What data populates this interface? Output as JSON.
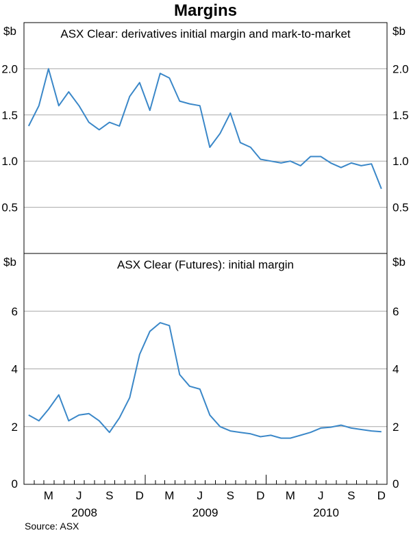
{
  "title": "Margins",
  "source": "Source: ASX",
  "colors": {
    "line": "#3a87c8",
    "grid": "#a8a8a8",
    "frame": "#000000"
  },
  "chart_data": [
    {
      "type": "line",
      "title": "ASX Clear: derivatives initial margin and mark-to-market",
      "unit_left": "$b",
      "unit_right": "$b",
      "ylim": [
        0,
        2.5
      ],
      "yticks": [
        {
          "value": 0.5,
          "label": "0.5"
        },
        {
          "value": 1.0,
          "label": "1.0"
        },
        {
          "value": 1.5,
          "label": "1.5"
        },
        {
          "value": 2.0,
          "label": "2.0"
        }
      ],
      "grid": true,
      "x": [
        "2008-01",
        "2008-02",
        "2008-03",
        "2008-04",
        "2008-05",
        "2008-06",
        "2008-07",
        "2008-08",
        "2008-09",
        "2008-10",
        "2008-11",
        "2008-12",
        "2009-01",
        "2009-02",
        "2009-03",
        "2009-04",
        "2009-05",
        "2009-06",
        "2009-07",
        "2009-08",
        "2009-09",
        "2009-10",
        "2009-11",
        "2009-12",
        "2010-01",
        "2010-02",
        "2010-03",
        "2010-04",
        "2010-05",
        "2010-06",
        "2010-07",
        "2010-08",
        "2010-09",
        "2010-10",
        "2010-11",
        "2010-12"
      ],
      "values": [
        1.38,
        1.6,
        2.0,
        1.6,
        1.75,
        1.6,
        1.42,
        1.34,
        1.42,
        1.38,
        1.7,
        1.85,
        1.55,
        1.95,
        1.9,
        1.65,
        1.62,
        1.6,
        1.15,
        1.3,
        1.52,
        1.2,
        1.15,
        1.02,
        1.0,
        0.98,
        1.0,
        0.95,
        1.05,
        1.05,
        0.98,
        0.93,
        0.98,
        0.95,
        0.97,
        0.7
      ]
    },
    {
      "type": "line",
      "title": "ASX Clear (Futures): initial margin",
      "unit_left": "$b",
      "unit_right": "$b",
      "ylim": [
        0,
        8
      ],
      "yticks": [
        {
          "value": 0,
          "label": "0"
        },
        {
          "value": 2,
          "label": "2"
        },
        {
          "value": 4,
          "label": "4"
        },
        {
          "value": 6,
          "label": "6"
        }
      ],
      "grid": true,
      "x": [
        "2008-01",
        "2008-02",
        "2008-03",
        "2008-04",
        "2008-05",
        "2008-06",
        "2008-07",
        "2008-08",
        "2008-09",
        "2008-10",
        "2008-11",
        "2008-12",
        "2009-01",
        "2009-02",
        "2009-03",
        "2009-04",
        "2009-05",
        "2009-06",
        "2009-07",
        "2009-08",
        "2009-09",
        "2009-10",
        "2009-11",
        "2009-12",
        "2010-01",
        "2010-02",
        "2010-03",
        "2010-04",
        "2010-05",
        "2010-06",
        "2010-07",
        "2010-08",
        "2010-09",
        "2010-10",
        "2010-11",
        "2010-12"
      ],
      "values": [
        2.4,
        2.2,
        2.6,
        3.1,
        2.2,
        2.4,
        2.45,
        2.2,
        1.8,
        2.3,
        3.0,
        4.5,
        5.3,
        5.6,
        5.5,
        3.8,
        3.4,
        3.3,
        2.4,
        2.0,
        1.85,
        1.8,
        1.75,
        1.65,
        1.7,
        1.6,
        1.6,
        1.7,
        1.8,
        1.95,
        1.98,
        2.05,
        1.95,
        1.9,
        1.85,
        1.82
      ]
    }
  ],
  "x_axis": {
    "month_labels": [
      {
        "month": "2008-03",
        "label": "M"
      },
      {
        "month": "2008-06",
        "label": "J"
      },
      {
        "month": "2008-09",
        "label": "S"
      },
      {
        "month": "2008-12",
        "label": "D"
      },
      {
        "month": "2009-03",
        "label": "M"
      },
      {
        "month": "2009-06",
        "label": "J"
      },
      {
        "month": "2009-09",
        "label": "S"
      },
      {
        "month": "2009-12",
        "label": "D"
      },
      {
        "month": "2010-03",
        "label": "M"
      },
      {
        "month": "2010-06",
        "label": "J"
      },
      {
        "month": "2010-09",
        "label": "S"
      },
      {
        "month": "2010-12",
        "label": "D"
      }
    ],
    "year_labels": [
      {
        "year": "2008",
        "label": "2008"
      },
      {
        "year": "2009",
        "label": "2009"
      },
      {
        "year": "2010",
        "label": "2010"
      }
    ]
  }
}
